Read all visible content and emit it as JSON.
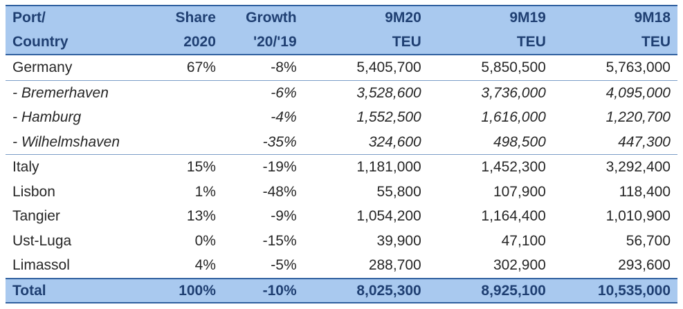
{
  "header": {
    "row1": [
      "Port/",
      "Share",
      "Growth",
      "9M20",
      "9M19",
      "9M18"
    ],
    "row2": [
      "Country",
      "2020",
      "'20/'19",
      "TEU",
      "TEU",
      "TEU"
    ]
  },
  "rows": [
    {
      "port": "Germany",
      "share": "67%",
      "growth": "-8%",
      "m20": "5,405,700",
      "m19": "5,850,500",
      "m18": "5,763,000"
    },
    {
      "port": "- Bremerhaven",
      "share": "",
      "growth": "-6%",
      "m20": "3,528,600",
      "m19": "3,736,000",
      "m18": "4,095,000"
    },
    {
      "port": "- Hamburg",
      "share": "",
      "growth": "-4%",
      "m20": "1,552,500",
      "m19": "1,616,000",
      "m18": "1,220,700"
    },
    {
      "port": "- Wilhelmshaven",
      "share": "",
      "growth": "-35%",
      "m20": "324,600",
      "m19": "498,500",
      "m18": "447,300"
    },
    {
      "port": "Italy",
      "share": "15%",
      "growth": "-19%",
      "m20": "1,181,000",
      "m19": "1,452,300",
      "m18": "3,292,400"
    },
    {
      "port": "Lisbon",
      "share": "1%",
      "growth": "-48%",
      "m20": "55,800",
      "m19": "107,900",
      "m18": "118,400"
    },
    {
      "port": "Tangier",
      "share": "13%",
      "growth": "-9%",
      "m20": "1,054,200",
      "m19": "1,164,400",
      "m18": "1,010,900"
    },
    {
      "port": "Ust-Luga",
      "share": "0%",
      "growth": "-15%",
      "m20": "39,900",
      "m19": "47,100",
      "m18": "56,700"
    },
    {
      "port": "Limassol",
      "share": "4%",
      "growth": "-5%",
      "m20": "288,700",
      "m19": "302,900",
      "m18": "293,600"
    }
  ],
  "total": {
    "port": "Total",
    "share": "100%",
    "growth": "-10%",
    "m20": "8,025,300",
    "m19": "8,925,100",
    "m18": "10,535,000"
  },
  "colors": {
    "header_bg": "#a9c9ef",
    "header_text": "#1f3f72",
    "rule": "#2f5f9f"
  }
}
